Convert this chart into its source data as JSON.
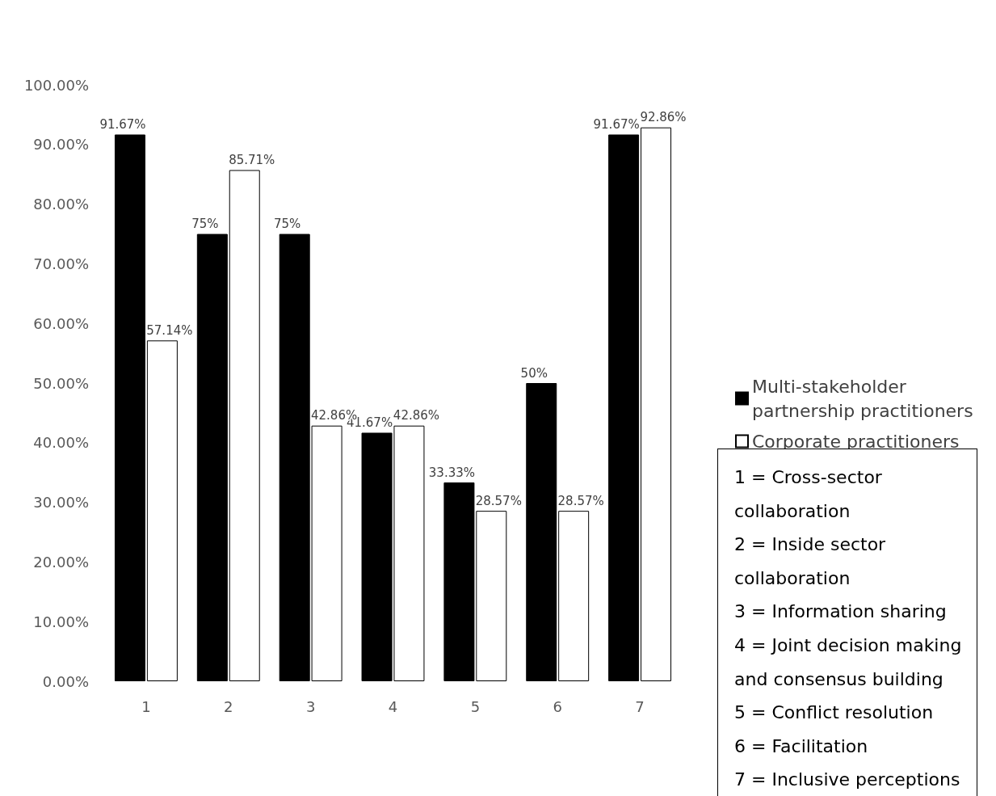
{
  "chart_data": {
    "type": "bar",
    "categories": [
      "1",
      "2",
      "3",
      "4",
      "5",
      "6",
      "7"
    ],
    "series": [
      {
        "name": "Multi-stakeholder partnership practitioners",
        "color": "#000000",
        "values": [
          91.67,
          75,
          75,
          41.67,
          33.33,
          50,
          91.67
        ],
        "value_labels": [
          "91.67%",
          "75%",
          "75%",
          "41.67%",
          "33.33%",
          "50%",
          "91.67%"
        ]
      },
      {
        "name": "Corporate practitioners",
        "color": "#ffffff",
        "values": [
          57.14,
          85.71,
          42.86,
          42.86,
          28.57,
          28.57,
          92.86
        ],
        "value_labels": [
          "57.14%",
          "85.71%",
          "42.86%",
          "42.86%",
          "28.57%",
          "28.57%",
          "92.86%"
        ]
      }
    ],
    "ylim": [
      0,
      100
    ],
    "yticks": [
      {
        "value": 0,
        "label": "0.00%"
      },
      {
        "value": 10,
        "label": "10.00%"
      },
      {
        "value": 20,
        "label": "20.00%"
      },
      {
        "value": 30,
        "label": "30.00%"
      },
      {
        "value": 40,
        "label": "40.00%"
      },
      {
        "value": 50,
        "label": "50.00%"
      },
      {
        "value": 60,
        "label": "60.00%"
      },
      {
        "value": 70,
        "label": "70.00%"
      },
      {
        "value": 80,
        "label": "80.00%"
      },
      {
        "value": 90,
        "label": "90.00%"
      },
      {
        "value": 100,
        "label": "100.00%"
      }
    ],
    "grid": false,
    "legend": "right",
    "annotations": [
      "1 = Cross-sector collaboration",
      "2 = Inside sector collaboration",
      "3 = Information sharing",
      "4 = Joint decision making and consensus building",
      "5 = Conflict resolution",
      "6 = Facilitation",
      "7 = Inclusive perceptions"
    ]
  }
}
